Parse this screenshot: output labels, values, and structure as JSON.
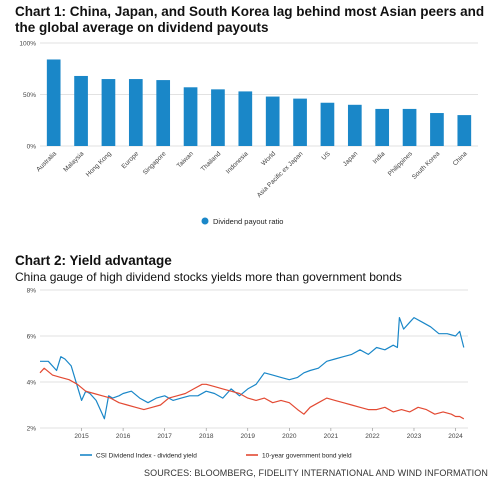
{
  "source": "SOURCES: BLOOMBERG, FIDELITY INTERNATIONAL AND WIND INFORMATION",
  "colors": {
    "blue": "#1a87c8",
    "red": "#e34a33",
    "grid": "#d9d9d9"
  },
  "chart_data": [
    {
      "type": "bar",
      "title": "Chart 1: China, Japan, and South Korea lag behind most Asian peers and the global average on dividend payouts",
      "categories": [
        "Australia",
        "Malaysia",
        "Hong Kong",
        "Europe",
        "Singapore",
        "Taiwan",
        "Thailand",
        "Indonesia",
        "World",
        "Asia Pacific ex Japan",
        "US",
        "Japan",
        "India",
        "Philippines",
        "South Korea",
        "China"
      ],
      "series": [
        {
          "name": "Dividend payout ratio",
          "values": [
            84,
            68,
            65,
            65,
            64,
            57,
            55,
            53,
            48,
            46,
            42,
            40,
            36,
            36,
            32,
            30
          ]
        }
      ],
      "ylim": [
        0,
        100
      ],
      "yticks": [
        0,
        50,
        100
      ],
      "ytick_labels": [
        "0%",
        "50%",
        "100%"
      ],
      "legend": "bottom",
      "grid": true
    },
    {
      "type": "line",
      "title": "Chart 2: Yield advantage",
      "subtitle": "China gauge of high dividend stocks yields more than government bonds",
      "xlim": [
        2014.0,
        2024.3
      ],
      "xticks": [
        "2015",
        "2016",
        "2017",
        "2018",
        "2019",
        "2020",
        "2021",
        "2022",
        "2023",
        "2024"
      ],
      "ylim": [
        2,
        8
      ],
      "yticks": [
        2,
        4,
        6,
        8
      ],
      "ytick_labels": [
        "2%",
        "4%",
        "6%",
        "8%"
      ],
      "legend": "bottom",
      "grid": true,
      "series": [
        {
          "name": "CSI Dividend Index - dividend yield",
          "x": [
            2014.0,
            2014.2,
            2014.4,
            2014.5,
            2014.6,
            2014.75,
            2014.9,
            2015.0,
            2015.1,
            2015.2,
            2015.35,
            2015.45,
            2015.55,
            2015.65,
            2015.75,
            2015.9,
            2016.0,
            2016.2,
            2016.4,
            2016.6,
            2016.8,
            2017.0,
            2017.2,
            2017.4,
            2017.6,
            2017.8,
            2018.0,
            2018.2,
            2018.4,
            2018.6,
            2018.8,
            2019.0,
            2019.2,
            2019.4,
            2019.6,
            2019.8,
            2020.0,
            2020.2,
            2020.35,
            2020.5,
            2020.7,
            2020.9,
            2021.1,
            2021.3,
            2021.5,
            2021.7,
            2021.9,
            2022.1,
            2022.3,
            2022.5,
            2022.6,
            2022.65,
            2022.75,
            2022.9,
            2023.0,
            2023.2,
            2023.4,
            2023.6,
            2023.8,
            2024.0,
            2024.1,
            2024.2
          ],
          "y": [
            4.9,
            4.9,
            4.5,
            5.1,
            5.0,
            4.7,
            3.8,
            3.2,
            3.6,
            3.5,
            3.2,
            2.8,
            2.4,
            3.4,
            3.3,
            3.4,
            3.5,
            3.6,
            3.3,
            3.1,
            3.3,
            3.4,
            3.2,
            3.3,
            3.4,
            3.4,
            3.6,
            3.5,
            3.3,
            3.7,
            3.4,
            3.7,
            3.9,
            4.4,
            4.3,
            4.2,
            4.1,
            4.2,
            4.4,
            4.5,
            4.6,
            4.9,
            5.0,
            5.1,
            5.2,
            5.4,
            5.2,
            5.5,
            5.4,
            5.6,
            5.5,
            6.8,
            6.3,
            6.6,
            6.8,
            6.6,
            6.4,
            6.1,
            6.1,
            6.0,
            6.2,
            5.5
          ]
        },
        {
          "name": "10-year government bond yield",
          "x": [
            2014.0,
            2014.1,
            2014.3,
            2014.5,
            2014.7,
            2014.9,
            2015.1,
            2015.3,
            2015.5,
            2015.7,
            2015.9,
            2016.1,
            2016.3,
            2016.5,
            2016.7,
            2016.9,
            2017.1,
            2017.3,
            2017.5,
            2017.7,
            2017.9,
            2018.0,
            2018.2,
            2018.4,
            2018.6,
            2018.8,
            2019.0,
            2019.2,
            2019.4,
            2019.6,
            2019.8,
            2020.0,
            2020.2,
            2020.35,
            2020.5,
            2020.7,
            2020.9,
            2021.1,
            2021.3,
            2021.5,
            2021.7,
            2021.9,
            2022.1,
            2022.3,
            2022.5,
            2022.7,
            2022.9,
            2023.1,
            2023.3,
            2023.5,
            2023.7,
            2023.9,
            2024.0,
            2024.1,
            2024.2
          ],
          "y": [
            4.4,
            4.6,
            4.3,
            4.2,
            4.1,
            3.9,
            3.6,
            3.5,
            3.4,
            3.3,
            3.1,
            3.0,
            2.9,
            2.8,
            2.9,
            3.0,
            3.3,
            3.4,
            3.5,
            3.7,
            3.9,
            3.9,
            3.8,
            3.7,
            3.6,
            3.5,
            3.3,
            3.2,
            3.3,
            3.1,
            3.2,
            3.1,
            2.8,
            2.6,
            2.9,
            3.1,
            3.3,
            3.2,
            3.1,
            3.0,
            2.9,
            2.8,
            2.8,
            2.9,
            2.7,
            2.8,
            2.7,
            2.9,
            2.8,
            2.6,
            2.7,
            2.6,
            2.5,
            2.5,
            2.4
          ]
        }
      ]
    }
  ]
}
